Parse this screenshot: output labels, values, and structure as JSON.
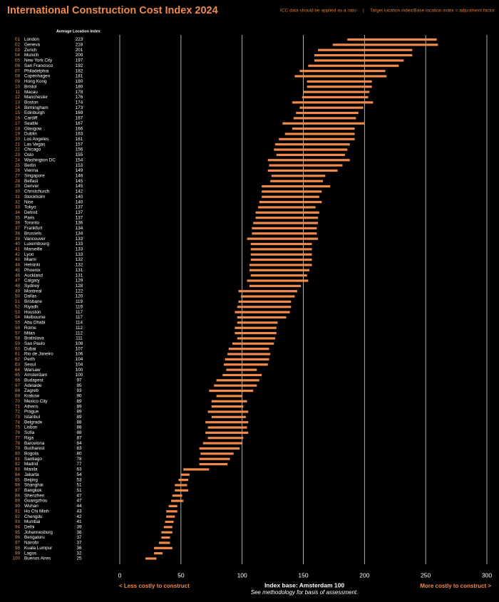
{
  "chart_data": {
    "type": "range-bar",
    "title": "International Construction Cost Index 2024",
    "note_left": "ICC data should be applied as a ratio",
    "note_right": "Target location index/Base location index = adjustment factor",
    "column_header": "Average Location Index",
    "x_label": "Index base: Amsterdam 100",
    "subnote": "See methodology for basis of assessment.",
    "left_label": "< Less costly to construct",
    "right_label": "More costly to construct >",
    "color": "#f08a4b",
    "grid": true,
    "xlim": [
      0,
      300
    ],
    "xticks": [
      0,
      50,
      100,
      150,
      200,
      250,
      300
    ],
    "ranks": [
      "01",
      "02",
      "03",
      "04",
      "05",
      "06",
      "07",
      "08",
      "09",
      "10",
      "11",
      "12",
      "13",
      "14",
      "15",
      "16",
      "17",
      "18",
      "19",
      "20",
      "21",
      "22",
      "23",
      "24",
      "25",
      "26",
      "27",
      "28",
      "29",
      "30",
      "31",
      "32",
      "33",
      "34",
      "35",
      "36",
      "37",
      "38",
      "39",
      "40",
      "41",
      "42",
      "43",
      "44",
      "45",
      "46",
      "47",
      "48",
      "49",
      "50",
      "51",
      "52",
      "53",
      "54",
      "55",
      "56",
      "57",
      "58",
      "59",
      "60",
      "61",
      "62",
      "63",
      "64",
      "65",
      "66",
      "67",
      "68",
      "69",
      "70",
      "71",
      "72",
      "73",
      "74",
      "75",
      "76",
      "77",
      "78",
      "79",
      "80",
      "81",
      "82",
      "83",
      "84",
      "85",
      "86",
      "87",
      "88",
      "89",
      "90",
      "91",
      "92",
      "93",
      "94",
      "95",
      "96",
      "97",
      "98",
      "99",
      "100"
    ],
    "categories": [
      "London",
      "Geneva",
      "Zurich",
      "Munich",
      "New York City",
      "San Francisco",
      "Philadelphia",
      "Copenhagen",
      "Hong Kong",
      "Bristol",
      "Macau",
      "Manchester",
      "Boston",
      "Birmingham",
      "Edinburgh",
      "Cardiff",
      "Seattle",
      "Glasgow",
      "Dublin",
      "Los Angeles",
      "Las Vegas",
      "Chicago",
      "Oslo",
      "Washington DC",
      "Berlin",
      "Vienna",
      "Singapore",
      "Belfast",
      "Denver",
      "Christchurch",
      "Stockholm",
      "Nice",
      "Tokyo",
      "Detroit",
      "Paris",
      "Toronto",
      "Frankfurt",
      "Brussels",
      "Vancouver",
      "Luxembourg",
      "Marseille",
      "Lyon",
      "Miami",
      "Helsinki",
      "Phoenix",
      "Auckland",
      "Calgary",
      "Sydney",
      "Montreal",
      "Dallas",
      "Brisbane",
      "Riyadh",
      "Houston",
      "Melbourne",
      "Abu Dhabi",
      "Rome",
      "Milan",
      "Bratislava",
      "Sao Paulo",
      "Dubai",
      "Rio de Janeiro",
      "Perth",
      "Seoul",
      "Warsaw",
      "Amsterdam",
      "Budapest",
      "Adelaide",
      "Zagreb",
      "Krakow",
      "Mexico City",
      "Athens",
      "Prague",
      "Istanbul",
      "Belgrade",
      "Lisbon",
      "Sofia",
      "Riga",
      "Barcelona",
      "Bucharest",
      "Bogota",
      "Santiago",
      "Madrid",
      "Manila",
      "Jakarta",
      "Beijing",
      "Shanghai",
      "Bangkok",
      "Shenzhen",
      "Guangzhou",
      "Wuhan",
      "Ho Chi Minh",
      "Chengdu",
      "Mumbai",
      "Delhi",
      "Johannesburg",
      "Bengaluru",
      "Nairobi",
      "Kuala Lumpur",
      "Lagos",
      "Buenos Aires"
    ],
    "values": [
      223,
      218,
      201,
      200,
      197,
      192,
      182,
      181,
      180,
      180,
      178,
      176,
      174,
      173,
      169,
      167,
      167,
      166,
      163,
      161,
      157,
      156,
      155,
      154,
      153,
      149,
      146,
      145,
      145,
      142,
      140,
      140,
      137,
      137,
      137,
      136,
      134,
      134,
      133,
      133,
      133,
      133,
      132,
      132,
      131,
      131,
      129,
      128,
      122,
      120,
      119,
      119,
      117,
      117,
      114,
      112,
      112,
      111,
      108,
      107,
      106,
      104,
      104,
      100,
      100,
      97,
      95,
      93,
      90,
      89,
      89,
      89,
      89,
      88,
      88,
      88,
      87,
      84,
      83,
      80,
      78,
      77,
      63,
      54,
      53,
      51,
      51,
      47,
      47,
      44,
      43,
      42,
      41,
      39,
      38,
      37,
      37,
      36,
      32,
      25
    ],
    "ranges": [
      [
        186,
        259
      ],
      [
        174,
        260
      ],
      [
        162,
        239
      ],
      [
        159,
        239
      ],
      [
        159,
        232
      ],
      [
        154,
        228
      ],
      [
        147,
        217
      ],
      [
        143,
        218
      ],
      [
        153,
        206
      ],
      [
        153,
        206
      ],
      [
        150,
        204
      ],
      [
        149,
        203
      ],
      [
        141,
        207
      ],
      [
        147,
        199
      ],
      [
        144,
        195
      ],
      [
        142,
        193
      ],
      [
        133,
        200
      ],
      [
        141,
        192
      ],
      [
        135,
        192
      ],
      [
        130,
        192
      ],
      [
        127,
        188
      ],
      [
        126,
        186
      ],
      [
        128,
        184
      ],
      [
        121,
        188
      ],
      [
        122,
        182
      ],
      [
        121,
        178
      ],
      [
        124,
        168
      ],
      [
        123,
        166
      ],
      [
        116,
        172
      ],
      [
        116,
        165
      ],
      [
        116,
        163
      ],
      [
        114,
        165
      ],
      [
        113,
        160
      ],
      [
        111,
        163
      ],
      [
        111,
        162
      ],
      [
        109,
        162
      ],
      [
        108,
        161
      ],
      [
        108,
        161
      ],
      [
        104,
        162
      ],
      [
        107,
        157
      ],
      [
        107,
        157
      ],
      [
        107,
        157
      ],
      [
        107,
        157
      ],
      [
        106,
        157
      ],
      [
        106,
        155
      ],
      [
        107,
        153
      ],
      [
        104,
        154
      ],
      [
        106,
        148
      ],
      [
        97,
        145
      ],
      [
        99,
        143
      ],
      [
        97,
        140
      ],
      [
        96,
        140
      ],
      [
        94,
        139
      ],
      [
        96,
        136
      ],
      [
        96,
        129
      ],
      [
        94,
        128
      ],
      [
        94,
        128
      ],
      [
        96,
        127
      ],
      [
        92,
        126
      ],
      [
        89,
        122
      ],
      [
        88,
        123
      ],
      [
        86,
        122
      ],
      [
        85,
        121
      ],
      [
        87,
        112
      ],
      [
        84,
        116
      ],
      [
        79,
        114
      ],
      [
        77,
        112
      ],
      [
        73,
        109
      ],
      [
        79,
        100
      ],
      [
        75,
        104
      ],
      [
        75,
        101
      ],
      [
        72,
        105
      ],
      [
        75,
        103
      ],
      [
        70,
        105
      ],
      [
        72,
        104
      ],
      [
        70,
        105
      ],
      [
        72,
        101
      ],
      [
        68,
        100
      ],
      [
        65,
        98
      ],
      [
        66,
        93
      ],
      [
        65,
        90
      ],
      [
        65,
        88
      ],
      [
        52,
        73
      ],
      [
        50,
        57
      ],
      [
        48,
        56
      ],
      [
        45,
        55
      ],
      [
        45,
        56
      ],
      [
        43,
        51
      ],
      [
        42,
        52
      ],
      [
        40,
        47
      ],
      [
        38,
        47
      ],
      [
        38,
        45
      ],
      [
        37,
        44
      ],
      [
        36,
        43
      ],
      [
        34,
        43
      ],
      [
        34,
        41
      ],
      [
        32,
        41
      ],
      [
        28,
        43
      ],
      [
        28,
        35
      ],
      [
        21,
        30
      ]
    ]
  }
}
